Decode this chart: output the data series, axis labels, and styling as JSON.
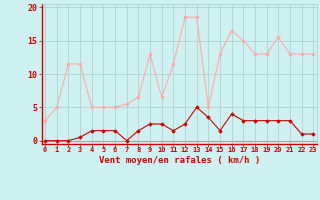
{
  "x": [
    0,
    1,
    2,
    3,
    4,
    5,
    6,
    7,
    8,
    9,
    10,
    11,
    12,
    13,
    14,
    15,
    16,
    17,
    18,
    19,
    20,
    21,
    22,
    23
  ],
  "rafales": [
    3,
    5,
    11.5,
    11.5,
    5,
    5,
    5,
    5.5,
    6.5,
    13,
    6.5,
    11.5,
    18.5,
    18.5,
    5,
    13,
    16.5,
    15,
    13,
    13,
    15.5,
    13,
    13,
    13
  ],
  "moyen": [
    0,
    0,
    0,
    0.5,
    1.5,
    1.5,
    1.5,
    0,
    1.5,
    2.5,
    2.5,
    1.5,
    2.5,
    5,
    3.5,
    1.5,
    4,
    3,
    3,
    3,
    3,
    3,
    1,
    1
  ],
  "line_color_rafales": "#ffaaaa",
  "line_color_moyen": "#cc0000",
  "bg_color": "#cef0f0",
  "grid_color": "#aacccc",
  "xlabel": "Vent moyen/en rafales ( km/h )",
  "xlabel_color": "#cc0000",
  "ylabel_vals": [
    0,
    5,
    10,
    15,
    20
  ],
  "ylim": [
    -0.5,
    20.5
  ],
  "xlim": [
    -0.3,
    23.3
  ]
}
